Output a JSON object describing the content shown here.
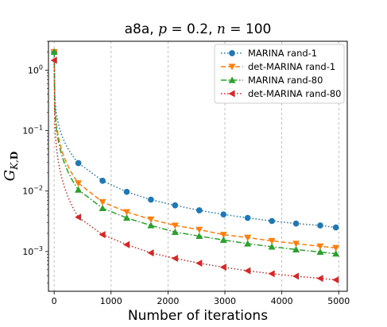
{
  "chart_data": {
    "type": "line",
    "title": "a8a, p = 0.2, n = 100",
    "xlabel": "Number of iterations",
    "ylabel": "G_{K,D}",
    "y_scale": "log",
    "x_range": [
      -100,
      5150
    ],
    "y_range": [
      0.00022,
      3.0
    ],
    "x_ticks": [
      0,
      1000,
      2000,
      3000,
      4000,
      5000
    ],
    "x_tick_labels": [
      "0",
      "1000",
      "2000",
      "3000",
      "4000",
      "5000"
    ],
    "y_ticks": [
      0.001,
      0.01,
      0.1,
      1
    ],
    "y_tick_labels": [
      "10^−3",
      "10^−2",
      "10^−1",
      "10^0"
    ],
    "grid": "vertical dashed at x ticks",
    "legend_position": "top-right",
    "series": [
      {
        "name": "MARINA rand-1",
        "color": "#1f77b4",
        "line_style": "dotted",
        "marker": "circle",
        "x": [
          0,
          425,
          850,
          1275,
          1700,
          2125,
          2550,
          2975,
          3400,
          3825,
          4250,
          4675,
          4950
        ],
        "y": [
          2.0,
          0.029,
          0.0148,
          0.0097,
          0.0072,
          0.0058,
          0.0048,
          0.0041,
          0.0036,
          0.0032,
          0.0029,
          0.0027,
          0.0025
        ]
      },
      {
        "name": "det-MARINA rand-1",
        "color": "#ff7f0e",
        "line_style": "dashed",
        "marker": "triangle-down",
        "x": [
          0,
          425,
          850,
          1275,
          1700,
          2125,
          2550,
          2975,
          3400,
          3825,
          4250,
          4675,
          4950
        ],
        "y": [
          2.0,
          0.0135,
          0.0066,
          0.0045,
          0.0034,
          0.0027,
          0.0023,
          0.0019,
          0.0017,
          0.0015,
          0.00135,
          0.00122,
          0.00115
        ]
      },
      {
        "name": "MARINA rand-80",
        "color": "#2ca02c",
        "line_style": "dashdot",
        "marker": "triangle-up",
        "x": [
          0,
          425,
          850,
          1275,
          1700,
          2125,
          2550,
          2975,
          3400,
          3825,
          4250,
          4675,
          4950
        ],
        "y": [
          2.0,
          0.0105,
          0.0052,
          0.0036,
          0.0027,
          0.0021,
          0.0018,
          0.00155,
          0.00135,
          0.0012,
          0.00108,
          0.00098,
          0.00092
        ]
      },
      {
        "name": "det-MARINA rand-80",
        "color": "#d62728",
        "line_style": "dotted",
        "marker": "triangle-left",
        "x": [
          0,
          425,
          850,
          1275,
          1700,
          2125,
          2550,
          2975,
          3400,
          3825,
          4250,
          4675,
          4950
        ],
        "y": [
          1.45,
          0.0037,
          0.0019,
          0.0013,
          0.00095,
          0.00077,
          0.00064,
          0.00055,
          0.00048,
          0.00043,
          0.00039,
          0.00036,
          0.00034
        ]
      }
    ]
  }
}
